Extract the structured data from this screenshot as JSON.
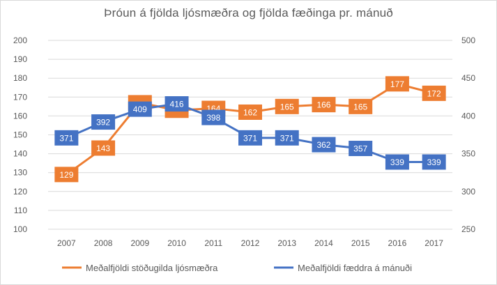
{
  "chart_data": {
    "type": "line",
    "title": "Þróun á fjölda ljósmæðra og fjölda fæðinga pr. mánuð",
    "categories": [
      "2007",
      "2008",
      "2009",
      "2010",
      "2011",
      "2012",
      "2013",
      "2014",
      "2015",
      "2016",
      "2017"
    ],
    "series": [
      {
        "name": "Meðalfjöldi stöðugilda ljósmæðra",
        "axis": "left",
        "color": "#ED7D31",
        "values": [
          129,
          143,
          167,
          163,
          164,
          162,
          165,
          166,
          165,
          177,
          172
        ],
        "labels": [
          "129",
          "143",
          "",
          "",
          "164",
          "162",
          "165",
          "166",
          "165",
          "177",
          "172"
        ]
      },
      {
        "name": "Meðalfjöldi fæddra á mánuði",
        "axis": "right",
        "color": "#4472C4",
        "values": [
          371,
          392,
          409,
          416,
          398,
          371,
          371,
          362,
          357,
          339,
          339
        ],
        "labels": [
          "371",
          "392",
          "409",
          "416",
          "398",
          "371",
          "371",
          "362",
          "357",
          "339",
          "339"
        ]
      }
    ],
    "y_left": {
      "min": 100,
      "max": 200,
      "step": 10,
      "ticks": [
        "100",
        "110",
        "120",
        "130",
        "140",
        "150",
        "160",
        "170",
        "180",
        "190",
        "200"
      ]
    },
    "y_right": {
      "min": 250,
      "max": 500,
      "step": 50,
      "ticks": [
        "250",
        "300",
        "350",
        "400",
        "450",
        "500"
      ]
    },
    "gridlines": true,
    "legend_position": "bottom"
  }
}
